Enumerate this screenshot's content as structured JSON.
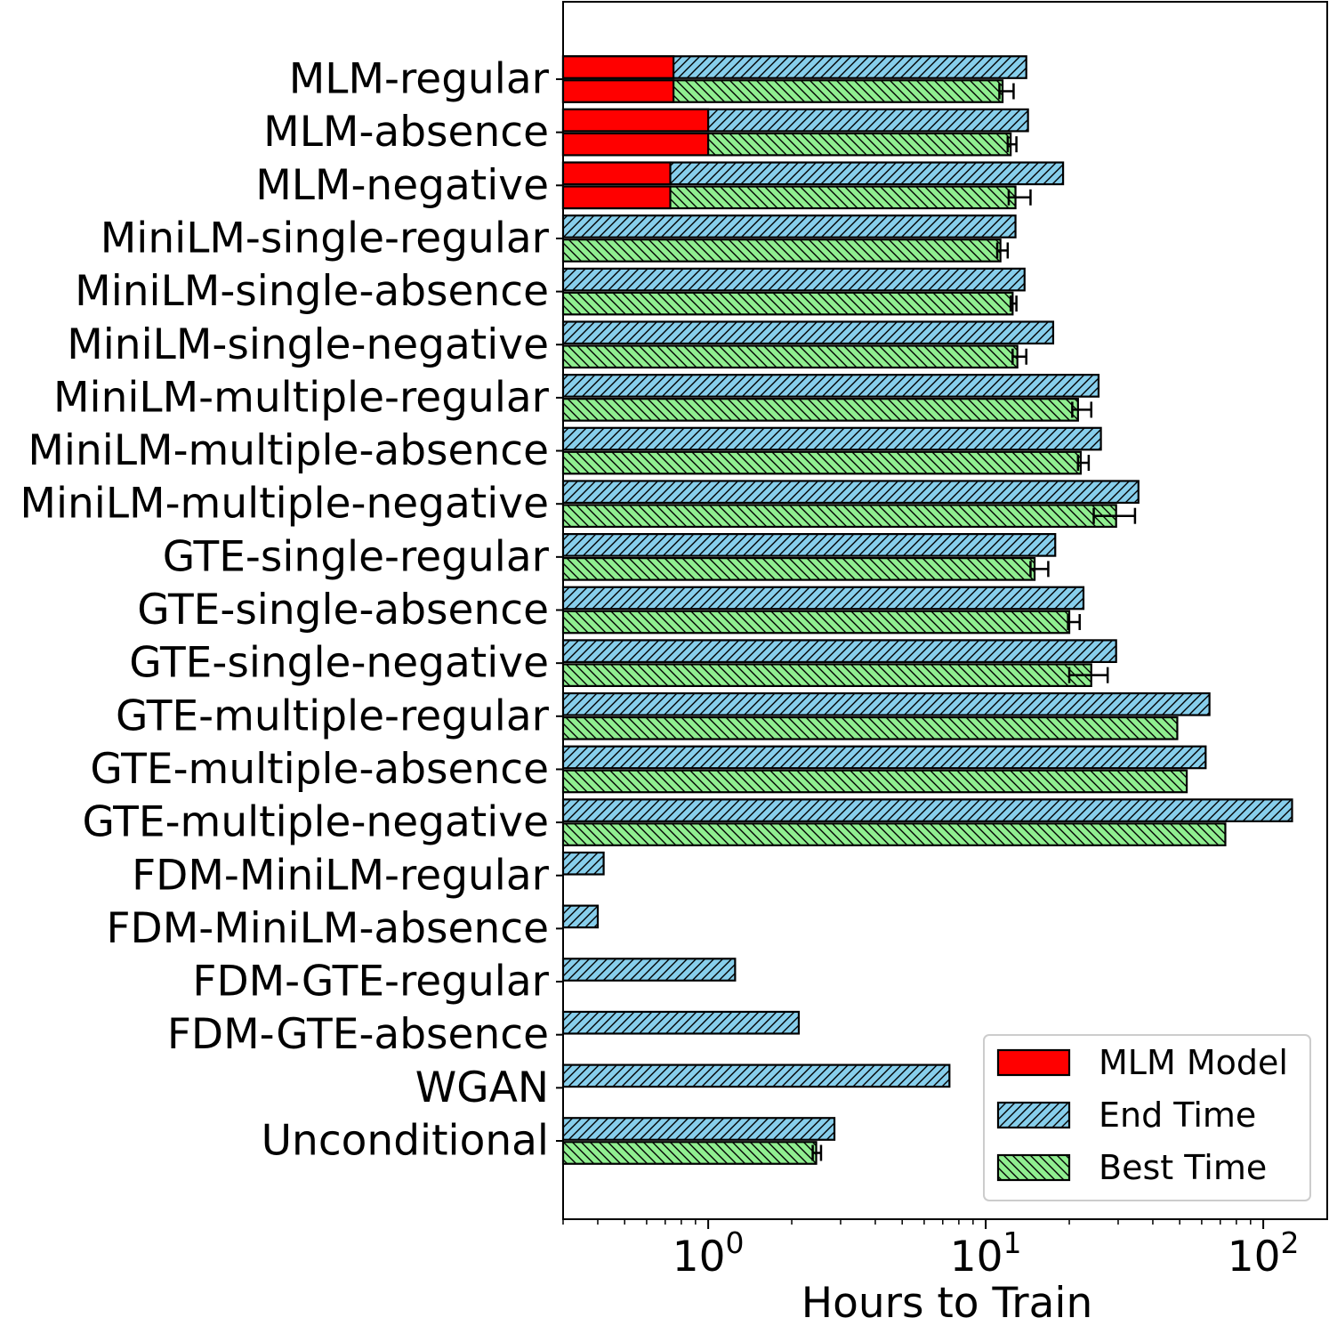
{
  "chart_data": {
    "type": "bar",
    "orientation": "horizontal",
    "title": "",
    "xlabel": "Hours to Train",
    "ylabel": "",
    "xscale": "log",
    "xlim": [
      0.3,
      170
    ],
    "x_ticks": [
      {
        "value": 1,
        "base": "10",
        "exp": "0"
      },
      {
        "value": 10,
        "base": "10",
        "exp": "1"
      },
      {
        "value": 100,
        "base": "10",
        "exp": "2"
      }
    ],
    "grid": false,
    "legend_position": "bottom-right",
    "categories": [
      "MLM-regular",
      "MLM-absence",
      "MLM-negative",
      "MiniLM-single-regular",
      "MiniLM-single-absence",
      "MiniLM-single-negative",
      "MiniLM-multiple-regular",
      "MiniLM-multiple-absence",
      "MiniLM-multiple-negative",
      "GTE-single-regular",
      "GTE-single-absence",
      "GTE-single-negative",
      "GTE-multiple-regular",
      "GTE-multiple-absence",
      "GTE-multiple-negative",
      "FDM-MiniLM-regular",
      "FDM-MiniLM-absence",
      "FDM-GTE-regular",
      "FDM-GTE-absence",
      "WGAN",
      "Unconditional"
    ],
    "series": [
      {
        "name": "MLM Model",
        "color": "#ff0000",
        "hatch": "none",
        "values": [
          0.75,
          1.0,
          0.73,
          null,
          null,
          null,
          null,
          null,
          null,
          null,
          null,
          null,
          null,
          null,
          null,
          null,
          null,
          null,
          null,
          null,
          null
        ]
      },
      {
        "name": "End Time",
        "color": "#87ceeb",
        "hatch": "forward",
        "values": [
          14.0,
          14.2,
          19.0,
          12.8,
          13.8,
          17.5,
          25.5,
          26.0,
          35.5,
          17.8,
          22.5,
          29.5,
          64.0,
          62.0,
          127.0,
          0.42,
          0.4,
          1.25,
          2.12,
          7.4,
          2.85
        ]
      },
      {
        "name": "Best Time",
        "color": "#90ee90",
        "hatch": "back",
        "values": [
          11.5,
          12.3,
          12.8,
          11.3,
          12.5,
          13.0,
          21.5,
          22.0,
          29.5,
          15.0,
          20.0,
          24.0,
          49.0,
          53.0,
          73.0,
          null,
          null,
          null,
          null,
          null,
          2.45
        ],
        "error_low": [
          11.2,
          12.0,
          12.1,
          11.0,
          12.3,
          12.5,
          20.5,
          21.5,
          24.5,
          14.5,
          19.8,
          20.0,
          null,
          null,
          null,
          null,
          null,
          null,
          null,
          null,
          2.38
        ],
        "error_high": [
          12.6,
          12.9,
          14.5,
          12.0,
          12.9,
          14.0,
          24.0,
          23.5,
          34.5,
          16.8,
          21.8,
          27.5,
          null,
          null,
          null,
          null,
          null,
          null,
          null,
          null,
          2.55
        ]
      }
    ]
  }
}
